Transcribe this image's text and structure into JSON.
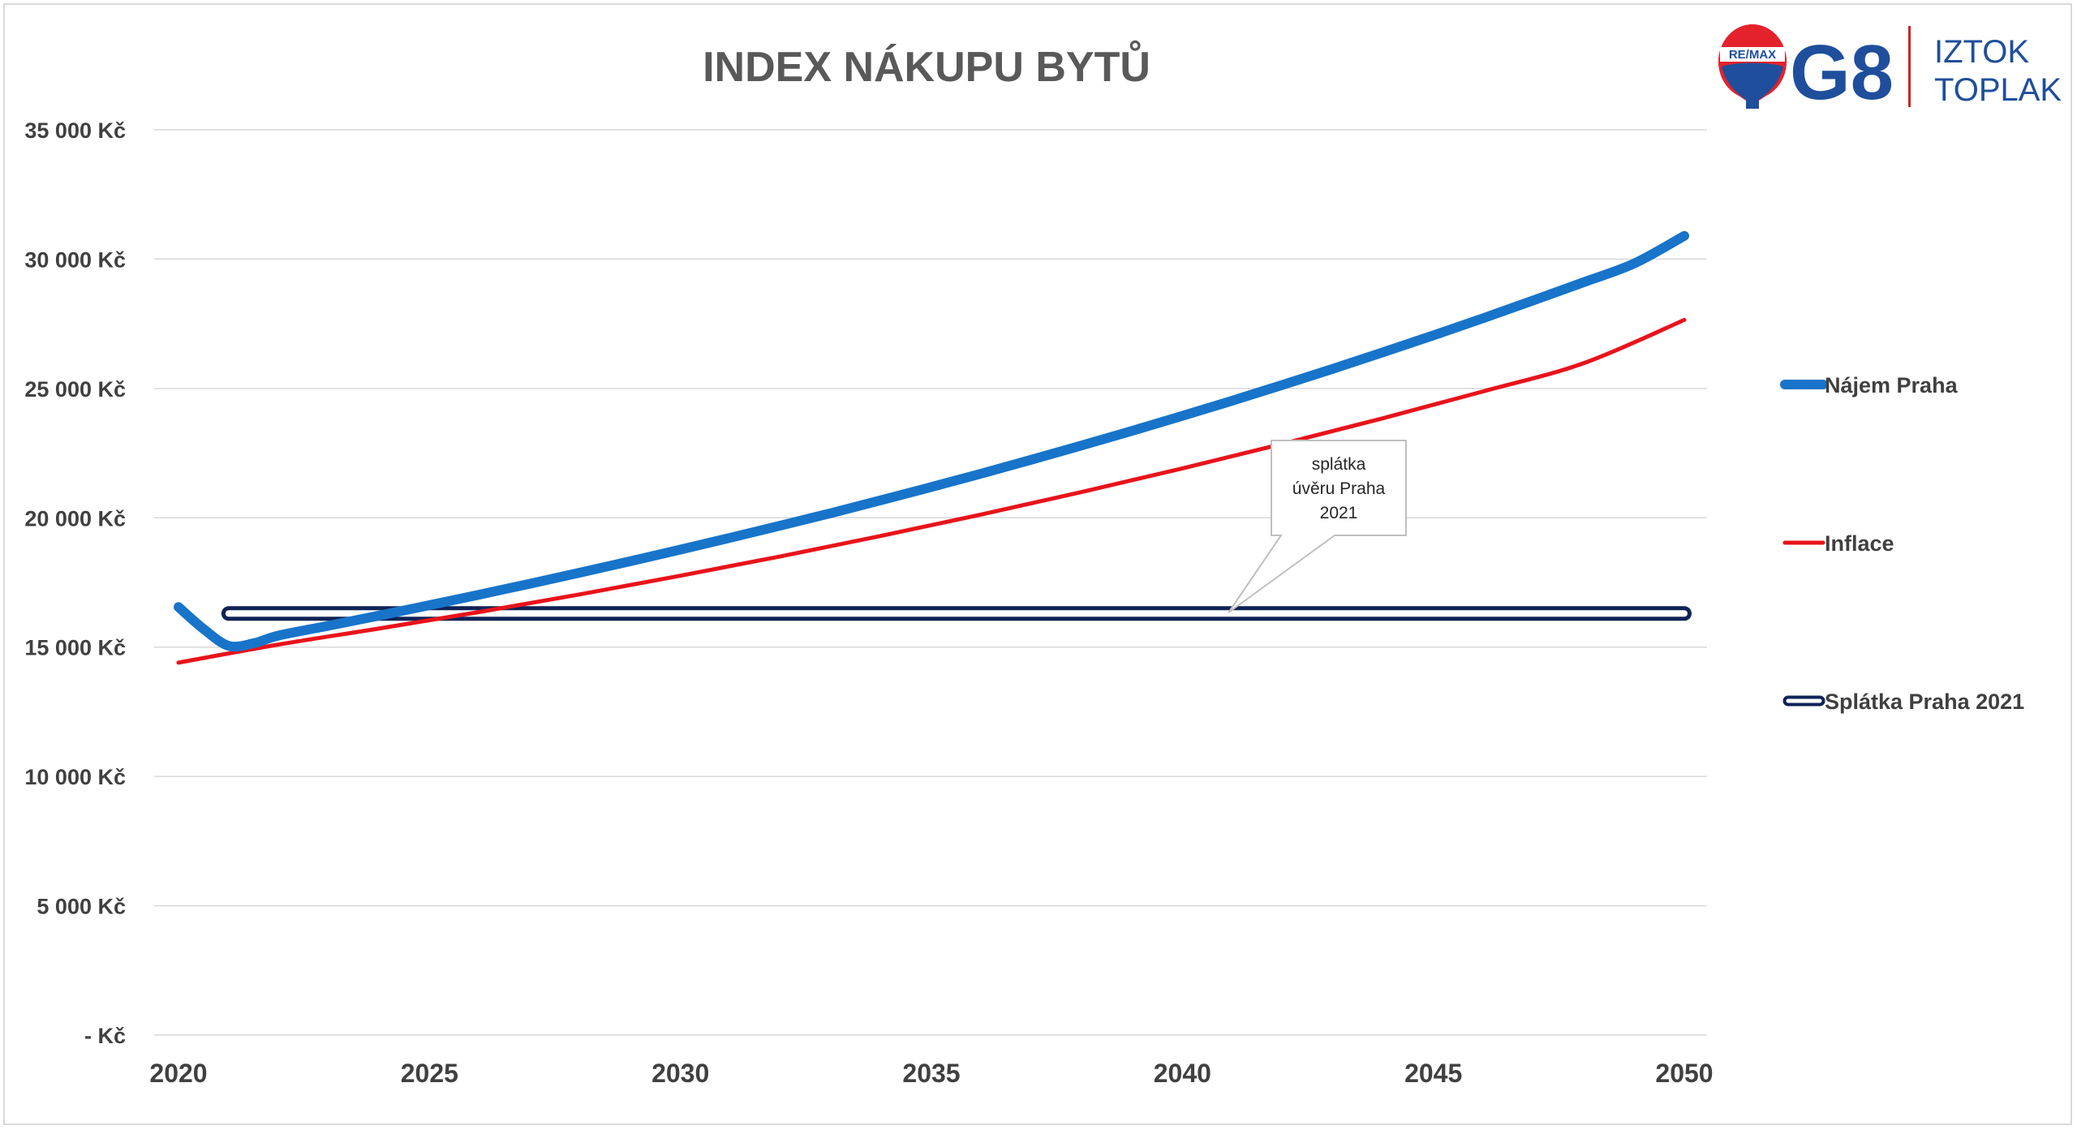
{
  "chart_data": {
    "type": "line",
    "title": "INDEX NÁKUPU BYTŮ",
    "xlabel": "",
    "ylabel": "",
    "x_ticks": [
      "2020",
      "2025",
      "2030",
      "2035",
      "2040",
      "2045",
      "2050"
    ],
    "xlim": [
      2020,
      2050
    ],
    "y_ticks": [
      "35 000 Kč",
      "30 000 Kč",
      "25 000 Kč",
      "20 000 Kč",
      "15 000 Kč",
      "10 000 Kč",
      "5 000 Kč",
      "-   Kč"
    ],
    "y_tick_values": [
      35000,
      30000,
      25000,
      20000,
      15000,
      10000,
      5000,
      0
    ],
    "ylim": [
      0,
      35000
    ],
    "grid": "horizontal",
    "legend_position": "right",
    "series": [
      {
        "name": "Nájem Praha",
        "color": "#1874c9",
        "style": "thick-line",
        "x": [
          2020,
          2020.5,
          2021,
          2021.5,
          2022,
          2023,
          2024,
          2025,
          2026,
          2027,
          2028,
          2029,
          2030,
          2031,
          2032,
          2033,
          2034,
          2035,
          2036,
          2037,
          2038,
          2039,
          2040,
          2041,
          2042,
          2043,
          2044,
          2045,
          2046,
          2047,
          2048,
          2049,
          2050
        ],
        "y": [
          16550,
          15700,
          15050,
          15150,
          15450,
          15830,
          16220,
          16620,
          17030,
          17450,
          17880,
          18320,
          18770,
          19230,
          19700,
          20180,
          20680,
          21190,
          21710,
          22250,
          22800,
          23360,
          23940,
          24530,
          25140,
          25760,
          26400,
          27050,
          27720,
          28410,
          29110,
          29830,
          30900
        ]
      },
      {
        "name": "Inflace",
        "color": "#e8131b",
        "style": "line",
        "x": [
          2020,
          2022,
          2024,
          2026,
          2028,
          2030,
          2032,
          2034,
          2036,
          2038,
          2040,
          2042,
          2044,
          2046,
          2048,
          2050
        ],
        "y": [
          14400,
          15100,
          15720,
          16360,
          17040,
          17760,
          18510,
          19300,
          20130,
          21000,
          21910,
          22860,
          23850,
          24890,
          25980,
          27650
        ]
      },
      {
        "name": "Splátka Praha 2021",
        "color": "#0f2356",
        "style": "outlined-line",
        "x": [
          2021,
          2050
        ],
        "y": [
          16300,
          16300
        ]
      }
    ],
    "annotations": [
      {
        "text_lines": [
          "splátka",
          "úvěru Praha",
          "2021"
        ],
        "points_to_x": 2041,
        "points_to_y": 16400
      }
    ]
  },
  "logo": {
    "balloon_text": "RE/MAX",
    "mark": "G8",
    "name_line1": "IZTOK",
    "name_line2": "TOPLAK"
  }
}
